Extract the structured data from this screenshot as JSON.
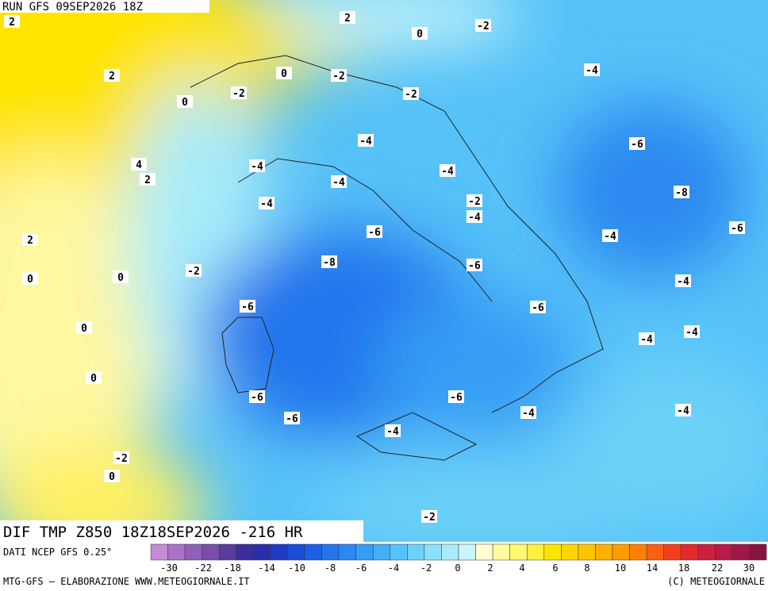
{
  "header": {
    "run": "RUN GFS 09SEP2026 18Z"
  },
  "map": {
    "contour_labels": [
      "2",
      "2",
      "0",
      "-2",
      "2",
      "0",
      "-2",
      "-4",
      "0",
      "-2",
      "-2",
      "-4",
      "-6",
      "4",
      "2",
      "-4",
      "-4",
      "-4",
      "-8",
      "-4",
      "-2",
      "-4",
      "-6",
      "-6",
      "-4",
      "2",
      "-8",
      "-6",
      "0",
      "0",
      "-2",
      "-4",
      "-6",
      "-6",
      "0",
      "-4",
      "-4",
      "0",
      "-6",
      "-6",
      "-4",
      "-4",
      "-6",
      "-4",
      "-2",
      "0",
      "-2"
    ]
  },
  "footer": {
    "field": "DIF TMP Z850 18Z18SEP2026 -216 HR",
    "source": "DATI NCEP GFS 0.25°",
    "credit_left": "MTG-GFS — ELABORAZIONE WWW.METEOGIORNALE.IT",
    "credit_right": "(C) METEOGIORNALE"
  },
  "colorbar": {
    "colors": [
      "#c48bd6",
      "#a873c8",
      "#9060b8",
      "#7a4ea8",
      "#5a3c9c",
      "#3c2f9c",
      "#2a2fa8",
      "#1f3cc4",
      "#1a4ed8",
      "#1c60e4",
      "#2474ec",
      "#2c88f0",
      "#369cf4",
      "#44b0f6",
      "#56c2f8",
      "#6cd2f8",
      "#8ae0fa",
      "#a8ecfa",
      "#c8f6fa",
      "#ffffd0",
      "#fffca0",
      "#fff870",
      "#fff040",
      "#ffe400",
      "#ffd400",
      "#ffc400",
      "#ffb000",
      "#ff9c00",
      "#ff8000",
      "#ff6010",
      "#f04020",
      "#e02c2c",
      "#cc2040",
      "#b81c48",
      "#a01848",
      "#881444"
    ],
    "labels": [
      "-30",
      "-22",
      "-18",
      "-14",
      "-10",
      "-8",
      "-6",
      "-4",
      "-2",
      "0",
      "2",
      "4",
      "6",
      "8",
      "10",
      "14",
      "18",
      "22",
      "30"
    ]
  }
}
